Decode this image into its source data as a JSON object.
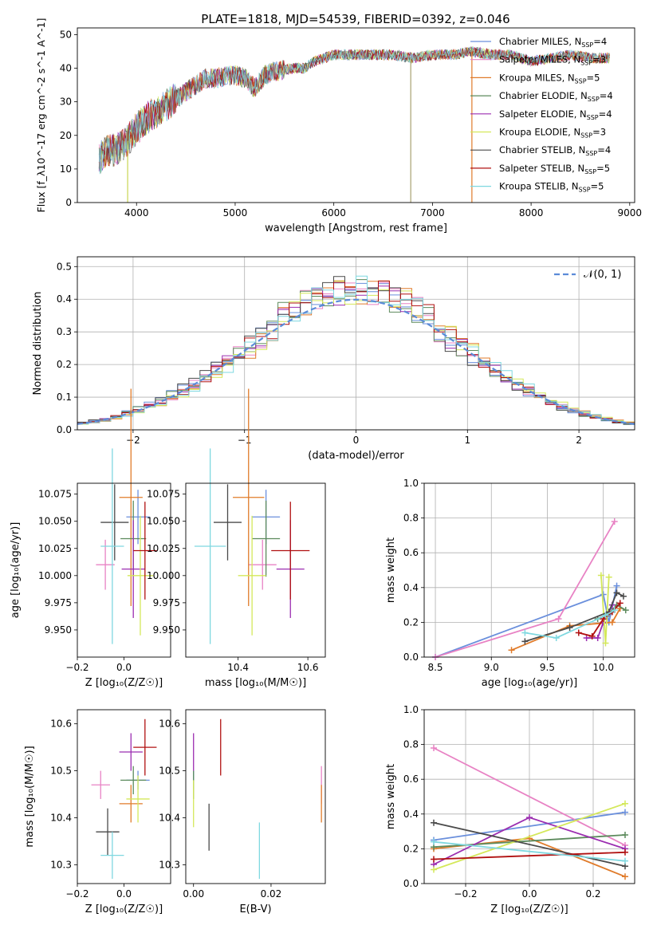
{
  "figure": {
    "title": "PLATE=1818, MJD=54539, FIBERID=0392, z=0.046"
  },
  "colors": {
    "Chabrier MILES": "#6a8fdc",
    "Salpeter MILES": "#e882c4",
    "Kroupa MILES": "#e07b2a",
    "Chabrier ELODIE": "#5c8a5c",
    "Salpeter ELODIE": "#9b2db0",
    "Kroupa ELODIE": "#d4e85a",
    "Chabrier STELIB": "#4a4a4a",
    "Salpeter STELIB": "#b01010",
    "Kroupa STELIB": "#7fd8e0",
    "normal": "#5b8bd8"
  },
  "chart_data": [
    {
      "id": "spectrum",
      "type": "line",
      "title": "PLATE=1818, MJD=54539, FIBERID=0392, z=0.046",
      "xlabel": "wavelength [Angstrom, rest frame]",
      "ylabel": "Flux [f_λ10^-17 erg cm^-2 s^-1 A^-1]",
      "xlim": [
        3400,
        9050
      ],
      "ylim": [
        0,
        52
      ],
      "xticks": [
        4000,
        5000,
        6000,
        7000,
        8000,
        9000
      ],
      "yticks": [
        0,
        10,
        20,
        30,
        40,
        50
      ],
      "legend_position": "upper-right",
      "legend": [
        {
          "model": "Chabrier MILES",
          "text": "Chabrier MILES, N",
          "sub": "SSP",
          "tail": "=4"
        },
        {
          "model": "Salpeter MILES",
          "text": "Salpeter MILES, N",
          "sub": "SSP",
          "tail": "=3"
        },
        {
          "model": "Kroupa MILES",
          "text": "Kroupa MILES, N",
          "sub": "SSP",
          "tail": "=5"
        },
        {
          "model": "Chabrier ELODIE",
          "text": "Chabrier ELODIE, N",
          "sub": "SSP",
          "tail": "=4"
        },
        {
          "model": "Salpeter ELODIE",
          "text": "Salpeter ELODIE, N",
          "sub": "SSP",
          "tail": "=4"
        },
        {
          "model": "Kroupa ELODIE",
          "text": "Kroupa ELODIE, N",
          "sub": "SSP",
          "tail": "=3"
        },
        {
          "model": "Chabrier STELIB",
          "text": "Chabrier STELIB, N",
          "sub": "SSP",
          "tail": "=4"
        },
        {
          "model": "Salpeter STELIB",
          "text": "Salpeter STELIB, N",
          "sub": "SSP",
          "tail": "=5"
        },
        {
          "model": "Kroupa STELIB",
          "text": "Kroupa STELIB, N",
          "sub": "SSP",
          "tail": "=5"
        }
      ],
      "continuum": {
        "x": [
          3620,
          3700,
          3800,
          3900,
          4000,
          4100,
          4200,
          4300,
          4400,
          4500,
          4600,
          4700,
          4800,
          4900,
          5000,
          5100,
          5200,
          5300,
          5400,
          5500,
          5600,
          5700,
          5800,
          5900,
          6000,
          6200,
          6400,
          6600,
          6800,
          7000,
          7200,
          7400,
          7600,
          7800,
          8000,
          8200,
          8400,
          8600,
          8800
        ],
        "y": [
          13,
          15,
          16,
          18,
          22,
          25,
          27,
          29,
          31,
          33,
          35,
          37,
          37,
          37.5,
          38,
          37,
          34,
          38,
          39,
          39.5,
          40,
          40,
          42,
          43,
          44,
          44,
          44,
          44,
          43,
          44,
          44,
          45,
          44,
          44,
          42,
          43,
          44,
          43,
          43
        ]
      },
      "spikes": [
        {
          "x": 3910,
          "y": 0
        },
        {
          "x": 6780,
          "y": 0
        },
        {
          "x": 7400,
          "y": 0
        }
      ]
    },
    {
      "id": "residuals",
      "type": "histogram",
      "xlabel": "(data-model)/error",
      "ylabel": "Normed distribution",
      "xlim": [
        -2.5,
        2.5
      ],
      "ylim": [
        0,
        0.53
      ],
      "xticks": [
        -2,
        -1,
        0,
        1,
        2
      ],
      "yticks": [
        0.0,
        0.1,
        0.2,
        0.3,
        0.4,
        0.5
      ],
      "grid": true,
      "bin_width": 0.1,
      "legend_position": "upper-right",
      "normal_label": "𝒩(0, 1)"
    },
    {
      "id": "age-vs-Z",
      "type": "scatter",
      "xlabel": "Z [log₁₀(Z/Z☉)]",
      "ylabel": "age  [log₁₀(age/yr)]",
      "xlim": [
        -0.2,
        0.2
      ],
      "ylim": [
        9.925,
        10.085
      ],
      "xticks": [
        -0.2,
        0.0
      ],
      "yticks": [
        9.95,
        9.975,
        10.0,
        10.025,
        10.05,
        10.075
      ],
      "points": [
        {
          "model": "Chabrier MILES",
          "x": 0.06,
          "y": 10.054,
          "xerr": 0.05,
          "yerr": 0.025
        },
        {
          "model": "Salpeter MILES",
          "x": -0.08,
          "y": 10.01,
          "xerr": 0.04,
          "yerr": 0.023
        },
        {
          "model": "Kroupa MILES",
          "x": 0.03,
          "y": 10.072,
          "xerr": 0.05,
          "yerr": 0.1
        },
        {
          "model": "Chabrier ELODIE",
          "x": 0.04,
          "y": 10.034,
          "xerr": 0.055,
          "yerr": 0.035
        },
        {
          "model": "Salpeter ELODIE",
          "x": 0.04,
          "y": 10.006,
          "xerr": 0.05,
          "yerr": 0.045
        },
        {
          "model": "Kroupa ELODIE",
          "x": 0.07,
          "y": 10.0,
          "xerr": 0.055,
          "yerr": 0.055
        },
        {
          "model": "Chabrier STELIB",
          "x": -0.04,
          "y": 10.049,
          "xerr": 0.06,
          "yerr": 0.035
        },
        {
          "model": "Salpeter STELIB",
          "x": 0.09,
          "y": 10.023,
          "xerr": 0.05,
          "yerr": 0.045
        },
        {
          "model": "Kroupa STELIB",
          "x": -0.05,
          "y": 10.027,
          "xerr": 0.05,
          "yerr": 0.09
        }
      ]
    },
    {
      "id": "age-vs-mass",
      "type": "scatter",
      "xlabel": "mass [log₁₀(M/M☉)]",
      "ylabel": "",
      "xlim": [
        10.25,
        10.65
      ],
      "ylim": [
        9.925,
        10.085
      ],
      "xticks": [
        10.4,
        10.6
      ],
      "yticks": [
        9.95,
        9.975,
        10.0,
        10.025,
        10.05,
        10.075
      ],
      "points": [
        {
          "model": "Chabrier MILES",
          "x": 10.48,
          "y": 10.054,
          "xerr": 0.04,
          "yerr": 0.025
        },
        {
          "model": "Salpeter MILES",
          "x": 10.47,
          "y": 10.01,
          "xerr": 0.04,
          "yerr": 0.023
        },
        {
          "model": "Kroupa MILES",
          "x": 10.43,
          "y": 10.072,
          "xerr": 0.045,
          "yerr": 0.1
        },
        {
          "model": "Chabrier ELODIE",
          "x": 10.48,
          "y": 10.034,
          "xerr": 0.04,
          "yerr": 0.035
        },
        {
          "model": "Salpeter ELODIE",
          "x": 10.55,
          "y": 10.006,
          "xerr": 0.04,
          "yerr": 0.045
        },
        {
          "model": "Kroupa ELODIE",
          "x": 10.44,
          "y": 10.0,
          "xerr": 0.04,
          "yerr": 0.055
        },
        {
          "model": "Chabrier STELIB",
          "x": 10.37,
          "y": 10.049,
          "xerr": 0.04,
          "yerr": 0.035
        },
        {
          "model": "Salpeter STELIB",
          "x": 10.55,
          "y": 10.023,
          "xerr": 0.055,
          "yerr": 0.045
        },
        {
          "model": "Kroupa STELIB",
          "x": 10.32,
          "y": 10.027,
          "xerr": 0.045,
          "yerr": 0.09
        }
      ]
    },
    {
      "id": "weight-vs-age",
      "type": "line",
      "xlabel": "age  [log₁₀(age/yr)]",
      "ylabel": "mass weight",
      "xlim": [
        8.4,
        10.28
      ],
      "ylim": [
        0,
        1.0
      ],
      "xticks": [
        8.5,
        9.0,
        9.5,
        10.0
      ],
      "yticks": [
        0.0,
        0.2,
        0.4,
        0.6,
        0.8,
        1.0
      ],
      "grid": true,
      "series": [
        {
          "model": "Chabrier MILES",
          "x": [
            8.5,
            10.0,
            10.05,
            10.12
          ],
          "y": [
            0.0,
            0.36,
            0.2,
            0.41
          ]
        },
        {
          "model": "Salpeter MILES",
          "x": [
            8.5,
            9.6,
            10.1
          ],
          "y": [
            0.0,
            0.22,
            0.78
          ]
        },
        {
          "model": "Kroupa MILES",
          "x": [
            9.18,
            9.7,
            10.08,
            10.15
          ],
          "y": [
            0.04,
            0.18,
            0.2,
            0.28
          ]
        },
        {
          "model": "Chabrier ELODIE",
          "x": [
            9.95,
            10.05,
            10.12,
            10.2
          ],
          "y": [
            0.22,
            0.25,
            0.3,
            0.27
          ]
        },
        {
          "model": "Salpeter ELODIE",
          "x": [
            9.85,
            9.95,
            10.0,
            10.08
          ],
          "y": [
            0.11,
            0.11,
            0.2,
            0.3
          ]
        },
        {
          "model": "Kroupa ELODIE",
          "x": [
            9.98,
            10.02,
            10.05
          ],
          "y": [
            0.47,
            0.08,
            0.46
          ]
        },
        {
          "model": "Chabrier STELIB",
          "x": [
            9.3,
            9.7,
            10.05,
            10.12,
            10.18
          ],
          "y": [
            0.09,
            0.17,
            0.26,
            0.37,
            0.35
          ]
        },
        {
          "model": "Salpeter STELIB",
          "x": [
            9.78,
            9.9,
            10.0,
            10.08,
            10.15
          ],
          "y": [
            0.14,
            0.12,
            0.22,
            0.26,
            0.31
          ]
        },
        {
          "model": "Kroupa STELIB",
          "x": [
            9.3,
            9.58,
            10.02,
            10.1
          ],
          "y": [
            0.14,
            0.11,
            0.24,
            0.27
          ]
        }
      ]
    },
    {
      "id": "mass-vs-Z",
      "type": "scatter",
      "xlabel": "Z [log₁₀(Z/Z☉)]",
      "ylabel": "mass [log₁₀(M/M☉)]",
      "xlim": [
        -0.2,
        0.2
      ],
      "ylim": [
        10.26,
        10.63
      ],
      "xticks": [
        -0.2,
        0.0
      ],
      "yticks": [
        10.3,
        10.4,
        10.5,
        10.6
      ],
      "points": [
        {
          "model": "Chabrier MILES",
          "x": 0.06,
          "y": 10.48,
          "xerr": 0.05,
          "yerr": 0.02
        },
        {
          "model": "Salpeter MILES",
          "x": -0.1,
          "y": 10.47,
          "xerr": 0.04,
          "yerr": 0.03
        },
        {
          "model": "Kroupa MILES",
          "x": 0.03,
          "y": 10.43,
          "xerr": 0.05,
          "yerr": 0.04
        },
        {
          "model": "Chabrier ELODIE",
          "x": 0.04,
          "y": 10.48,
          "xerr": 0.055,
          "yerr": 0.03
        },
        {
          "model": "Salpeter ELODIE",
          "x": 0.03,
          "y": 10.54,
          "xerr": 0.05,
          "yerr": 0.04
        },
        {
          "model": "Kroupa ELODIE",
          "x": 0.06,
          "y": 10.44,
          "xerr": 0.05,
          "yerr": 0.05
        },
        {
          "model": "Chabrier STELIB",
          "x": -0.07,
          "y": 10.37,
          "xerr": 0.05,
          "yerr": 0.05
        },
        {
          "model": "Salpeter STELIB",
          "x": 0.09,
          "y": 10.55,
          "xerr": 0.05,
          "yerr": 0.06
        },
        {
          "model": "Kroupa STELIB",
          "x": -0.05,
          "y": 10.32,
          "xerr": 0.05,
          "yerr": 0.05
        }
      ]
    },
    {
      "id": "mass-vs-ebv",
      "type": "scatter",
      "xlabel": "E(B-V)",
      "ylabel": "",
      "xlim": [
        -0.002,
        0.034
      ],
      "ylim": [
        10.26,
        10.63
      ],
      "xticks": [
        0.0,
        0.02
      ],
      "yticks": [
        10.3,
        10.4,
        10.5,
        10.6
      ],
      "points": [
        {
          "model": "Chabrier MILES",
          "x": 0.0,
          "y": 10.48,
          "xerr": 0,
          "yerr": 0.02
        },
        {
          "model": "Salpeter MILES",
          "x": 0.033,
          "y": 10.47,
          "xerr": 0,
          "yerr": 0.04
        },
        {
          "model": "Kroupa MILES",
          "x": 0.033,
          "y": 10.43,
          "xerr": 0,
          "yerr": 0.04
        },
        {
          "model": "Chabrier ELODIE",
          "x": 0.0,
          "y": 10.47,
          "xerr": 0,
          "yerr": 0.03
        },
        {
          "model": "Salpeter ELODIE",
          "x": 0.0,
          "y": 10.54,
          "xerr": 0,
          "yerr": 0.04
        },
        {
          "model": "Kroupa ELODIE",
          "x": 0.0,
          "y": 10.43,
          "xerr": 0,
          "yerr": 0.05
        },
        {
          "model": "Chabrier STELIB",
          "x": 0.004,
          "y": 10.38,
          "xerr": 0,
          "yerr": 0.05
        },
        {
          "model": "Salpeter STELIB",
          "x": 0.007,
          "y": 10.55,
          "xerr": 0,
          "yerr": 0.06
        },
        {
          "model": "Kroupa STELIB",
          "x": 0.017,
          "y": 10.33,
          "xerr": 0,
          "yerr": 0.06
        }
      ]
    },
    {
      "id": "weight-vs-Z",
      "type": "line",
      "xlabel": "Z [log₁₀(Z/Z☉)]",
      "ylabel": "mass weight",
      "xlim": [
        -0.33,
        0.33
      ],
      "ylim": [
        0,
        1.0
      ],
      "xticks": [
        -0.2,
        0.0,
        0.2
      ],
      "yticks": [
        0.0,
        0.2,
        0.4,
        0.6,
        0.8,
        1.0
      ],
      "grid": true,
      "series": [
        {
          "model": "Chabrier MILES",
          "x": [
            -0.3,
            0.3
          ],
          "y": [
            0.25,
            0.41
          ]
        },
        {
          "model": "Salpeter MILES",
          "x": [
            -0.3,
            0.3
          ],
          "y": [
            0.78,
            0.22
          ]
        },
        {
          "model": "Kroupa MILES",
          "x": [
            -0.3,
            0.0,
            0.3
          ],
          "y": [
            0.2,
            0.26,
            0.04
          ]
        },
        {
          "model": "Chabrier ELODIE",
          "x": [
            -0.3,
            0.3
          ],
          "y": [
            0.21,
            0.28
          ]
        },
        {
          "model": "Salpeter ELODIE",
          "x": [
            -0.3,
            0.0,
            0.3
          ],
          "y": [
            0.11,
            0.38,
            0.2
          ]
        },
        {
          "model": "Kroupa ELODIE",
          "x": [
            -0.3,
            0.3
          ],
          "y": [
            0.08,
            0.46
          ]
        },
        {
          "model": "Chabrier STELIB",
          "x": [
            -0.3,
            0.3
          ],
          "y": [
            0.35,
            0.1
          ]
        },
        {
          "model": "Salpeter STELIB",
          "x": [
            -0.3,
            0.3
          ],
          "y": [
            0.14,
            0.18
          ]
        },
        {
          "model": "Kroupa STELIB",
          "x": [
            -0.3,
            0.3
          ],
          "y": [
            0.24,
            0.13
          ]
        }
      ]
    }
  ]
}
